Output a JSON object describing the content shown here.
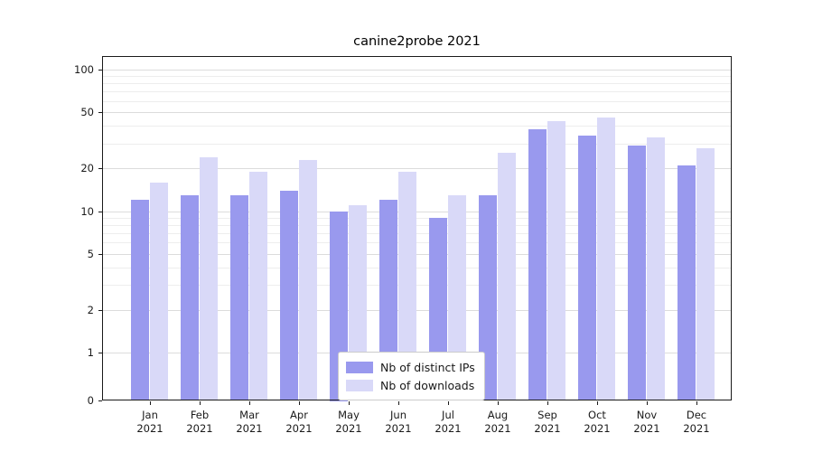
{
  "chart_data": {
    "type": "bar",
    "title": "canine2probe 2021",
    "categories": [
      "Jan",
      "Feb",
      "Mar",
      "Apr",
      "May",
      "Jun",
      "Jul",
      "Aug",
      "Sep",
      "Oct",
      "Nov",
      "Dec"
    ],
    "x_year_label": "2021",
    "series": [
      {
        "name": "Nb of distinct IPs",
        "color": "#9999ee",
        "values": [
          12,
          13,
          13,
          14,
          10,
          12,
          9,
          13,
          38,
          34,
          29,
          21
        ]
      },
      {
        "name": "Nb of downloads",
        "color": "#d9d9f8",
        "values": [
          16,
          24,
          19,
          23,
          11,
          19,
          13,
          26,
          43,
          46,
          33,
          28
        ]
      }
    ],
    "yscale": "symlog",
    "y_ticks": [
      0,
      1,
      2,
      5,
      10,
      20,
      50,
      100
    ],
    "y_minor_ticks": [
      3,
      4,
      6,
      7,
      8,
      9,
      30,
      40,
      60,
      70,
      80,
      90
    ],
    "ylim": [
      0,
      125
    ],
    "grid": true,
    "legend_position": "lower center",
    "colors": {
      "grid_major": "#dcdcdc",
      "grid_minor": "#ededed",
      "spine": "#1a1a1a"
    }
  }
}
